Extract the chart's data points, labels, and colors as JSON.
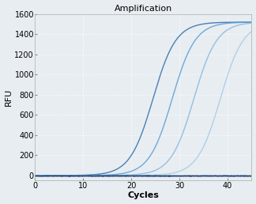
{
  "title": "Amplification",
  "xlabel": "Cycles",
  "ylabel": "RFU",
  "xlim": [
    0,
    45
  ],
  "ylim": [
    -50,
    1600
  ],
  "yticks": [
    0,
    200,
    400,
    600,
    800,
    1000,
    1200,
    1400,
    1600
  ],
  "xticks": [
    0,
    10,
    20,
    30,
    40
  ],
  "background_color": "#e8edf2",
  "plot_bg_color": "#e8edf2",
  "grid_color": "#ffffff",
  "curves": [
    {
      "midpoint": 24.5,
      "L": 1520,
      "k": 0.42,
      "color": "#4a7fb5",
      "alpha": 1.0,
      "lw": 1.0
    },
    {
      "midpoint": 28.5,
      "L": 1520,
      "k": 0.42,
      "color": "#5b9bd5",
      "alpha": 0.85,
      "lw": 1.0
    },
    {
      "midpoint": 33.0,
      "L": 1520,
      "k": 0.42,
      "color": "#7ab0d8",
      "alpha": 0.75,
      "lw": 1.0
    },
    {
      "midpoint": 38.5,
      "L": 1520,
      "k": 0.42,
      "color": "#99c2e0",
      "alpha": 0.7,
      "lw": 1.0
    }
  ],
  "baseline": {
    "y": -5,
    "color": "#1a3f6f",
    "alpha": 1.0,
    "lw": 1.2
  },
  "title_fontsize": 8,
  "axis_label_fontsize": 8,
  "tick_fontsize": 7,
  "spine_color": "#aaaaaa"
}
